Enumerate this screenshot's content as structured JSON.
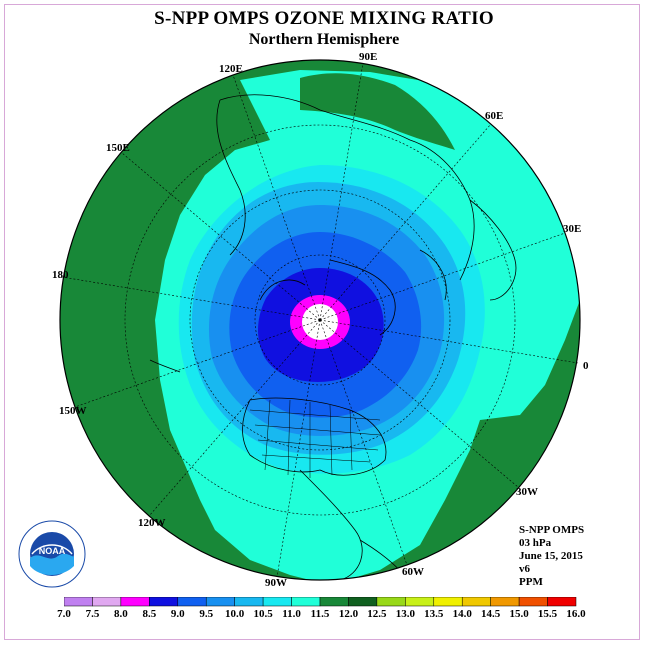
{
  "title": "S-NPP OMPS OZONE MIXING RATIO",
  "subtitle": "Northern Hemisphere",
  "longitude_labels": {
    "e90": "90E",
    "e120": "120E",
    "e60": "60E",
    "e150": "150E",
    "e30": "30E",
    "lon180": "180",
    "lon0": "0",
    "w150": "150W",
    "w30": "30W",
    "w120": "120W",
    "w60": "60W",
    "w90": "90W"
  },
  "info": {
    "instrument": "S-NPP OMPS",
    "level": "03 hPa",
    "date": "June 15, 2015",
    "version": "v6",
    "units": "PPM"
  },
  "colorbar": {
    "ticks": [
      "7.0",
      "7.5",
      "8.0",
      "8.5",
      "9.0",
      "9.5",
      "10.0",
      "10.5",
      "11.0",
      "11.5",
      "12.0",
      "12.5",
      "13.0",
      "13.5",
      "14.0",
      "14.5",
      "15.0",
      "15.5",
      "16.0"
    ],
    "colors": [
      "#c080f0",
      "#e0a8f0",
      "#ff00ff",
      "#1010e0",
      "#1060f0",
      "#1890f0",
      "#18b8f0",
      "#18e8f0",
      "#20ffd8",
      "#188838",
      "#106020",
      "#98d818",
      "#c8f018",
      "#f0f000",
      "#f0c800",
      "#f09800",
      "#f05000",
      "#f00000",
      "#905030"
    ]
  },
  "logo_text": "NOAA",
  "map_colors": {
    "outside": "#188838",
    "ring_11": "#20ffd8",
    "ring_105": "#18e8f0",
    "ring_10": "#18b8f0",
    "ring_95": "#1890f0",
    "ring_9": "#1060f0",
    "ring_85": "#1010e0",
    "ring_8": "#ff00ff",
    "pole": "#ffffff"
  }
}
